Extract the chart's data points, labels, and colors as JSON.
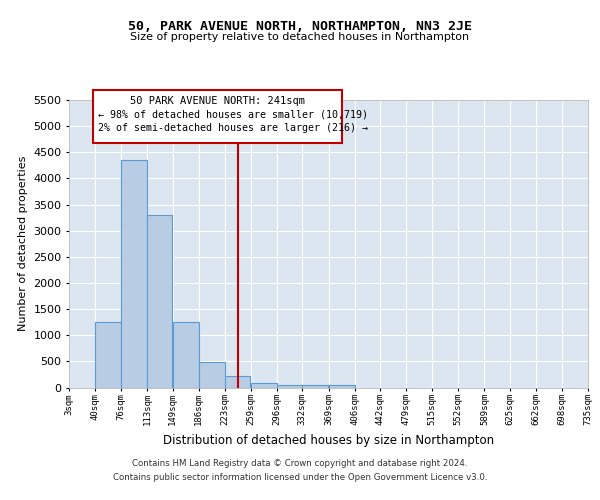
{
  "title": "50, PARK AVENUE NORTH, NORTHAMPTON, NN3 2JE",
  "subtitle": "Size of property relative to detached houses in Northampton",
  "xlabel": "Distribution of detached houses by size in Northampton",
  "ylabel": "Number of detached properties",
  "bin_edges": [
    3,
    40,
    76,
    113,
    149,
    186,
    223,
    259,
    296,
    332,
    369,
    406,
    442,
    479,
    515,
    552,
    589,
    625,
    662,
    698,
    735
  ],
  "bar_heights": [
    0,
    1250,
    4350,
    3300,
    1250,
    480,
    220,
    90,
    55,
    50,
    50,
    0,
    0,
    0,
    0,
    0,
    0,
    0,
    0,
    0
  ],
  "bar_color": "#b8cce4",
  "bar_edge_color": "#5b9bd5",
  "vline_x": 241,
  "vline_color": "#c00000",
  "ylim": [
    0,
    5500
  ],
  "yticks": [
    0,
    500,
    1000,
    1500,
    2000,
    2500,
    3000,
    3500,
    4000,
    4500,
    5000,
    5500
  ],
  "plot_bg_color": "#dce6f1",
  "annotation_title": "50 PARK AVENUE NORTH: 241sqm",
  "annotation_line1": "← 98% of detached houses are smaller (10,719)",
  "annotation_line2": "2% of semi-detached houses are larger (216) →",
  "annotation_box_color": "#ffffff",
  "annotation_border_color": "#c00000",
  "footer_line1": "Contains HM Land Registry data © Crown copyright and database right 2024.",
  "footer_line2": "Contains public sector information licensed under the Open Government Licence v3.0.",
  "tick_labels": [
    "3sqm",
    "40sqm",
    "76sqm",
    "113sqm",
    "149sqm",
    "186sqm",
    "223sqm",
    "259sqm",
    "296sqm",
    "332sqm",
    "369sqm",
    "406sqm",
    "442sqm",
    "479sqm",
    "515sqm",
    "552sqm",
    "589sqm",
    "625sqm",
    "662sqm",
    "698sqm",
    "735sqm"
  ]
}
